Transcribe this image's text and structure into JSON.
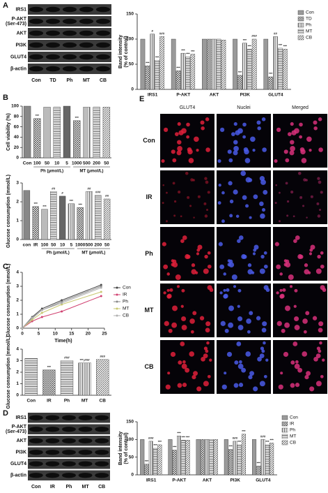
{
  "panel_labels": [
    "A",
    "B",
    "C",
    "D",
    "E"
  ],
  "blots": [
    {
      "rows": [
        "IRS1",
        [
          "P-AKT",
          "(Ser-473)"
        ],
        "AKT",
        "PI3K",
        "GLUT4",
        "β-actin"
      ],
      "lanes": [
        "Con",
        "TD",
        "Ph",
        "MT",
        "CB"
      ]
    },
    {
      "rows": [
        "IRS1",
        [
          "P-AKT",
          "(Ser-473)"
        ],
        "AKT",
        "PI3K",
        "GLUT4",
        "β-actin"
      ],
      "lanes": [
        "Con",
        "IR",
        "Ph",
        "MT",
        "CB"
      ]
    }
  ],
  "micrographs": {
    "columns": [
      "GLUT4",
      "Nuclei",
      "Merged"
    ],
    "rows": [
      "Con",
      "IR",
      "Ph",
      "MT",
      "CB"
    ]
  },
  "chart_data": [
    {
      "type": "bar",
      "y_label": [
        "Band intensity",
        "(% of control)"
      ],
      "categories": [
        "IRS1",
        "P-AKT",
        "AKT",
        "PI3K",
        "GLUT4"
      ],
      "ylim": [
        0,
        150
      ],
      "yticks": [
        0,
        50,
        100,
        150
      ],
      "legend": "right",
      "series": [
        {
          "name": "Con",
          "color": "#9a9a9a",
          "pattern": "solid",
          "values": [
            100,
            100,
            100,
            100,
            100
          ],
          "sig": [
            null,
            null,
            null,
            null,
            null
          ]
        },
        {
          "name": "TD",
          "color": "#444444",
          "pattern": "crosshatch",
          "values": [
            47,
            37,
            100,
            28,
            25
          ],
          "sig": [
            "***",
            "***",
            null,
            "***",
            "***"
          ]
        },
        {
          "name": "Ph",
          "color": "#444444",
          "pattern": "vertical",
          "values": [
            110,
            72,
            100,
            92,
            105
          ],
          "sig": [
            "#",
            "***",
            null,
            "***",
            "##"
          ]
        },
        {
          "name": "MT",
          "color": "#444444",
          "pattern": "horizontal",
          "values": [
            58,
            65,
            100,
            80,
            82
          ],
          "sig": [
            "***",
            "***",
            null,
            "***",
            "***"
          ]
        },
        {
          "name": "CB",
          "color": "#444444",
          "pattern": "diagonal",
          "values": [
            105,
            70,
            98,
            100,
            80
          ],
          "sig": [
            "###",
            "***",
            null,
            "###",
            "***"
          ]
        }
      ]
    },
    {
      "type": "bar",
      "y_label": [
        "Cell viability (%)"
      ],
      "categories": [
        "Con",
        "100",
        "50",
        "10",
        "5",
        "1000",
        "500",
        "200",
        "50"
      ],
      "group_labels": [
        "Ph (μmol/L)",
        "MT (μmol/L)"
      ],
      "ylim": [
        0,
        100
      ],
      "yticks": [
        0,
        20,
        40,
        60,
        80,
        100
      ],
      "values": [
        100,
        76,
        98,
        98,
        100,
        72,
        98,
        98,
        98
      ],
      "colors": [
        "#888888",
        "#555555",
        "#bbbbbb",
        "#999999",
        "#666666",
        "#555555",
        "#aaaaaa",
        "#777777",
        "#555555"
      ],
      "patterns": [
        "solid",
        "crosshatch",
        "solid",
        "horizontal",
        "solid",
        "crosshatch",
        "vertical",
        "horizontal",
        "diagonal"
      ],
      "sig": [
        null,
        "***",
        null,
        null,
        null,
        "***",
        null,
        null,
        null
      ]
    },
    {
      "type": "bar",
      "y_label": [
        "Glucose consumption (mmol/L)"
      ],
      "categories": [
        "con",
        "IR",
        "100",
        "50",
        "10",
        "5",
        "1000",
        "500",
        "200",
        "50"
      ],
      "group_labels": [
        "Ph (μmol/L)",
        "MT (μmol/L)"
      ],
      "ylim": [
        0,
        3
      ],
      "yticks": [
        0,
        1,
        2,
        3
      ],
      "values": [
        2.6,
        1.75,
        1.6,
        2.55,
        2.3,
        1.9,
        1.7,
        2.55,
        2.35,
        2.15
      ],
      "colors": [
        "#888888",
        "#555555",
        "#bbbbbb",
        "#999999",
        "#666666",
        "#777777",
        "#555555",
        "#aaaaaa",
        "#777777",
        "#555555"
      ],
      "patterns": [
        "solid",
        "crosshatch",
        "solid",
        "horizontal",
        "solid",
        "vertical",
        "crosshatch",
        "vertical",
        "horizontal",
        "diagonal"
      ],
      "sig": [
        null,
        "***",
        "***",
        "##",
        "#",
        "***",
        "***",
        "##",
        "###",
        "##"
      ]
    },
    {
      "type": "line",
      "y_label": [
        "Glucose consumption (mmol/L)"
      ],
      "x_label": "Time(h)",
      "x": [
        0,
        3,
        6,
        12,
        24
      ],
      "xlim": [
        0,
        25
      ],
      "xticks": [
        0,
        5,
        10,
        15,
        20,
        25
      ],
      "ylim": [
        0,
        4
      ],
      "yticks": [
        0,
        1,
        2,
        3,
        4
      ],
      "legend": "right",
      "series": [
        {
          "name": "Con",
          "color": "#444444",
          "values": [
            0,
            0.8,
            1.4,
            2.0,
            3.1
          ]
        },
        {
          "name": "IR",
          "color": "#d04070",
          "values": [
            0,
            0.5,
            0.8,
            1.2,
            2.3
          ]
        },
        {
          "name": "Ph",
          "color": "#888888",
          "values": [
            0,
            0.7,
            1.3,
            1.9,
            3.0
          ]
        },
        {
          "name": "MT",
          "color": "#c8c870",
          "values": [
            0,
            0.6,
            1.1,
            1.7,
            2.6
          ]
        },
        {
          "name": "CB",
          "color": "#b0b0b0",
          "values": [
            0,
            0.75,
            1.3,
            1.8,
            2.9
          ]
        }
      ]
    },
    {
      "type": "bar",
      "y_label": [
        "Glucose consumption (mmol/L)"
      ],
      "categories": [
        "Con",
        "IR",
        "Ph",
        "MT",
        "CB"
      ],
      "ylim": [
        0,
        4
      ],
      "yticks": [
        0,
        1,
        2,
        3,
        4
      ],
      "values": [
        3.2,
        2.2,
        3.0,
        2.8,
        3.1
      ],
      "colors": [
        "#888888",
        "#444444",
        "#444444",
        "#444444",
        "#444444"
      ],
      "patterns": [
        "horizontal",
        "crosshatch",
        "horizontal",
        "vertical",
        "diagonal"
      ],
      "sig": [
        null,
        "***",
        "###",
        "***,###",
        "###"
      ]
    },
    {
      "type": "bar",
      "y_label": [
        "Band intensity",
        "(% of control)"
      ],
      "categories": [
        "IRS1",
        "P-AKT",
        "AKT",
        "PI3K",
        "GLUT4"
      ],
      "ylim": [
        0,
        150
      ],
      "yticks": [
        0,
        50,
        100,
        150
      ],
      "legend": "right",
      "series": [
        {
          "name": "Con",
          "color": "#9a9a9a",
          "pattern": "solid",
          "values": [
            100,
            100,
            100,
            100,
            100
          ],
          "sig": [
            null,
            null,
            null,
            null,
            null
          ]
        },
        {
          "name": "IR",
          "color": "#444444",
          "pattern": "crosshatch",
          "values": [
            30,
            70,
            100,
            72,
            25
          ],
          "sig": [
            "***",
            "***",
            null,
            "***",
            "***"
          ]
        },
        {
          "name": "Ph",
          "color": "#444444",
          "pattern": "vertical",
          "values": [
            95,
            110,
            100,
            95,
            100
          ],
          "sig": [
            "###",
            "***",
            null,
            "###",
            "###"
          ]
        },
        {
          "name": "MT",
          "color": "#444444",
          "pattern": "horizontal",
          "values": [
            75,
            98,
            100,
            85,
            85
          ],
          "sig": [
            "***",
            "***",
            null,
            "***",
            "***"
          ]
        },
        {
          "name": "CB",
          "color": "#444444",
          "pattern": "diagonal",
          "values": [
            85,
            98,
            100,
            115,
            90
          ],
          "sig": [
            "***",
            "***",
            null,
            "***",
            "***"
          ]
        }
      ]
    }
  ]
}
